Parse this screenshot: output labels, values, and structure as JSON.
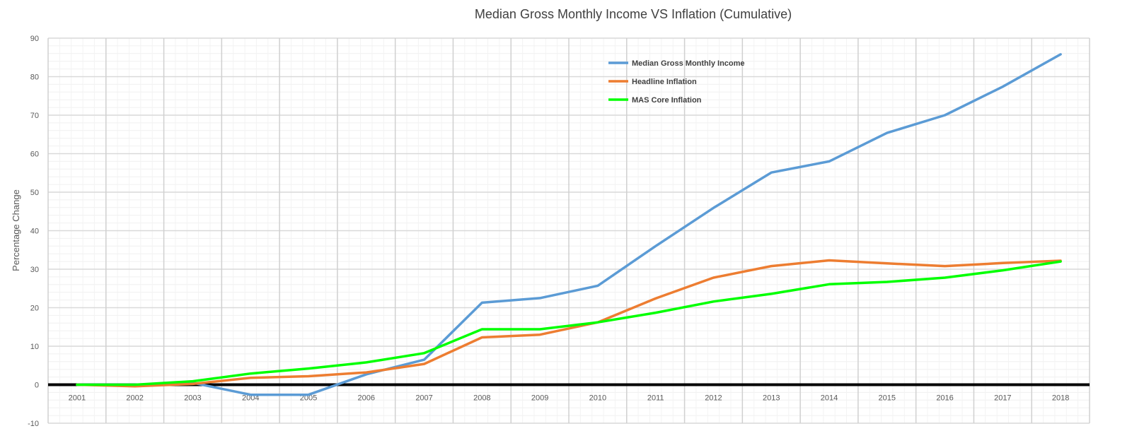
{
  "chart_data": {
    "type": "line",
    "title": "Median Gross Monthly Income VS Inflation (Cumulative)",
    "xlabel": "",
    "ylabel": "Percentage Change",
    "ylim": [
      -10,
      90
    ],
    "y_ticks": [
      -10,
      0,
      10,
      20,
      30,
      40,
      50,
      60,
      70,
      80,
      90
    ],
    "grid": true,
    "legend_position": "top-center",
    "categories": [
      "2001",
      "2002",
      "2003",
      "2004",
      "2005",
      "2006",
      "2007",
      "2008",
      "2009",
      "2010",
      "2011",
      "2012",
      "2013",
      "2014",
      "2015",
      "2016",
      "2017",
      "2018"
    ],
    "series": [
      {
        "name": "Median Gross Monthly Income",
        "color": "#5b9bd5",
        "values": [
          0,
          0,
          0.5,
          -2.6,
          -2.6,
          2.7,
          6.5,
          21.3,
          22.5,
          25.7,
          36.0,
          45.9,
          55.1,
          58.0,
          65.4,
          70.0,
          77.4,
          85.8
        ]
      },
      {
        "name": "Headline Inflation",
        "color": "#ed7d31",
        "values": [
          0,
          -0.4,
          0.2,
          1.8,
          2.2,
          3.2,
          5.4,
          12.3,
          13.0,
          16.2,
          22.4,
          27.8,
          30.8,
          32.3,
          31.5,
          30.8,
          31.6,
          32.2
        ]
      },
      {
        "name": "MAS Core Inflation",
        "color": "#00ff00",
        "values": [
          0,
          0,
          0.9,
          2.9,
          4.2,
          5.8,
          8.2,
          14.4,
          14.4,
          16.2,
          18.7,
          21.6,
          23.6,
          26.1,
          26.7,
          27.8,
          29.7,
          32.0
        ]
      }
    ]
  }
}
